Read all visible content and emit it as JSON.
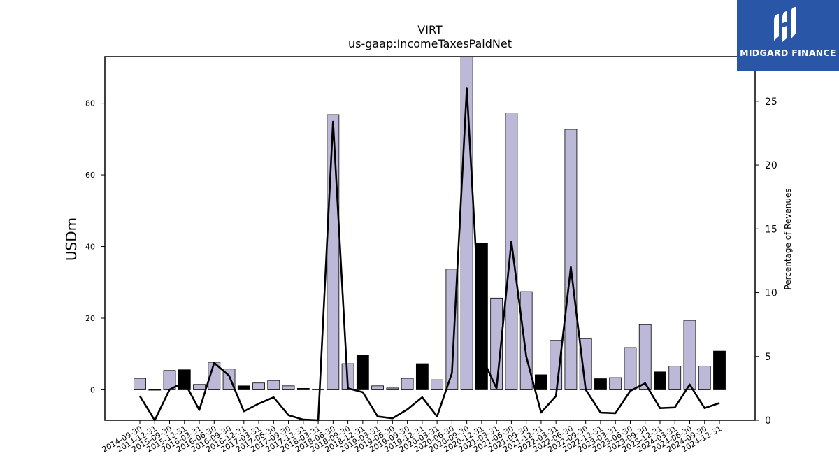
{
  "chart_data": {
    "type": "bar",
    "title": "VIRT",
    "subtitle": "us-gaap:IncomeTaxesPaidNet",
    "ylabel": "USDm",
    "y2label": "Percentage of Revenues",
    "ylim": [
      -8.5,
      93
    ],
    "y2lim": [
      0,
      28.5
    ],
    "yticks": [
      0,
      20,
      40,
      60,
      80
    ],
    "y2ticks": [
      0,
      5,
      10,
      15,
      20,
      25
    ],
    "categories": [
      "2014-09-30",
      "2014-12-31",
      "2015-09-30",
      "2015-12-31",
      "2016-03-31",
      "2016-06-30",
      "2016-09-30",
      "2016-12-31",
      "2017-03-31",
      "2017-06-30",
      "2017-09-30",
      "2017-12-31",
      "2018-03-31",
      "2018-06-30",
      "2018-09-30",
      "2018-12-31",
      "2019-03-31",
      "2019-06-30",
      "2019-09-30",
      "2019-12-31",
      "2020-03-31",
      "2020-06-30",
      "2020-09-30",
      "2020-12-31",
      "2021-03-31",
      "2021-06-30",
      "2021-09-30",
      "2021-12-31",
      "2022-03-31",
      "2022-06-30",
      "2022-09-30",
      "2022-12-31",
      "2023-03-31",
      "2023-06-30",
      "2023-09-30",
      "2023-12-31",
      "2024-03-31",
      "2024-06-30",
      "2024-09-30",
      "2024-12-31"
    ],
    "series": [
      {
        "kind": "bar",
        "values": [
          3.2,
          0,
          5.4,
          5.6,
          1.5,
          7.7,
          5.8,
          1.1,
          1.9,
          2.6,
          1.1,
          0.4,
          0.2,
          76.8,
          7.3,
          9.7,
          1.1,
          0.5,
          3.2,
          7.3,
          2.8,
          33.7,
          93.0,
          41.0,
          25.6,
          77.3,
          27.4,
          4.2,
          13.8,
          72.7,
          14.3,
          3.1,
          3.4,
          11.8,
          18.2,
          5.0,
          6.6,
          19.4,
          6.6,
          10.8
        ],
        "highlight": [
          false,
          false,
          false,
          true,
          false,
          false,
          false,
          true,
          false,
          false,
          false,
          true,
          false,
          false,
          false,
          true,
          false,
          false,
          false,
          true,
          false,
          false,
          false,
          true,
          false,
          false,
          false,
          true,
          false,
          false,
          false,
          true,
          false,
          false,
          false,
          true,
          false,
          false,
          false,
          true
        ]
      },
      {
        "kind": "line",
        "axis": "right",
        "values": [
          1.9,
          0.0,
          2.4,
          3.0,
          0.8,
          4.5,
          3.5,
          0.7,
          1.3,
          1.8,
          0.4,
          0.05,
          0.0,
          23.4,
          2.5,
          2.2,
          0.3,
          0.15,
          0.85,
          1.8,
          0.3,
          3.7,
          26.0,
          5.0,
          2.5,
          14.0,
          5.0,
          0.6,
          1.9,
          12.0,
          2.4,
          0.6,
          0.55,
          2.3,
          2.9,
          0.95,
          1.0,
          2.8,
          0.95,
          1.35
        ]
      }
    ],
    "colors": {
      "bar": "#bcb8d8",
      "bar_highlight": "#000000",
      "line": "#000000"
    },
    "grid": false
  },
  "logo": {
    "text": "MIDGARD FINANCE",
    "color": "#2a56a8"
  }
}
